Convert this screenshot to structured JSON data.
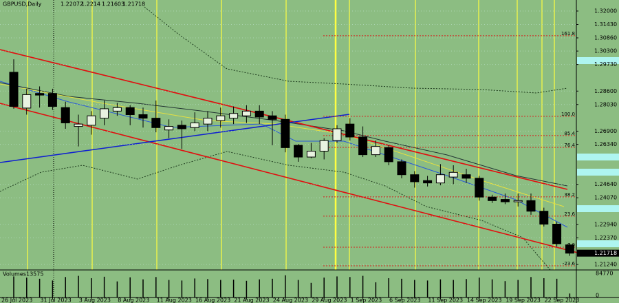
{
  "chart_data": {
    "type": "candlestick",
    "title": "GBPUSD,Daily",
    "categories": [
      "26 Jul 2023",
      null,
      null,
      "31 Jul 2023",
      null,
      null,
      "3 Aug 2023",
      null,
      null,
      "8 Aug 2023",
      null,
      null,
      "11 Aug 2023",
      null,
      null,
      "16 Aug 2023",
      null,
      null,
      "21 Aug 2023",
      null,
      null,
      "24 Aug 2023",
      null,
      null,
      "29 Aug 2023",
      null,
      null,
      "1 Sep 2023",
      null,
      null,
      "6 Sep 2023",
      null,
      null,
      "11 Sep 2023",
      null,
      null,
      "14 Sep 2023",
      null,
      null,
      "19 Sep 2023",
      null,
      null,
      "22 Sep 2023",
      null
    ],
    "open": [
      1.294,
      1.2788,
      1.285,
      1.285,
      1.279,
      1.271,
      1.2715,
      1.2745,
      1.2775,
      1.279,
      1.276,
      1.2745,
      1.2695,
      1.2715,
      1.2705,
      1.272,
      1.2735,
      1.2745,
      1.2755,
      1.2775,
      1.2755,
      1.274,
      1.263,
      1.258,
      1.2605,
      1.265,
      1.272,
      1.2665,
      1.259,
      1.262,
      1.256,
      1.2505,
      1.248,
      1.247,
      1.2495,
      1.2505,
      1.249,
      1.241,
      1.24,
      1.239,
      1.2395,
      1.235,
      1.2295,
      1.22072
    ],
    "high": [
      1.2995,
      1.287,
      1.288,
      1.287,
      1.2815,
      1.276,
      1.2775,
      1.282,
      1.281,
      1.28,
      1.279,
      1.282,
      1.274,
      1.2735,
      1.277,
      1.2775,
      1.279,
      1.2795,
      1.28,
      1.28,
      1.2775,
      1.276,
      1.2635,
      1.264,
      1.266,
      1.2715,
      1.2745,
      1.271,
      1.265,
      1.263,
      1.257,
      1.252,
      1.25,
      1.255,
      1.2545,
      1.253,
      1.25,
      1.242,
      1.2425,
      1.2425,
      1.2425,
      1.2365,
      1.2305,
      1.2214
    ],
    "low": [
      1.2785,
      1.276,
      1.279,
      1.278,
      1.27,
      1.2625,
      1.2675,
      1.2715,
      1.2755,
      1.2715,
      1.2705,
      1.2685,
      1.266,
      1.2615,
      1.269,
      1.269,
      1.2705,
      1.272,
      1.2725,
      1.272,
      1.263,
      1.26,
      1.256,
      1.2575,
      1.257,
      1.264,
      1.265,
      1.258,
      1.258,
      1.2545,
      1.249,
      1.245,
      1.2455,
      1.246,
      1.2465,
      1.247,
      1.2395,
      1.2385,
      1.238,
      1.237,
      1.2335,
      1.2285,
      1.22,
      1.21603
    ],
    "close": [
      1.2795,
      1.2845,
      1.2843,
      1.2795,
      1.2725,
      1.272,
      1.2755,
      1.2785,
      1.279,
      1.276,
      1.2745,
      1.2705,
      1.271,
      1.27,
      1.2725,
      1.2745,
      1.2755,
      1.2765,
      1.2775,
      1.275,
      1.274,
      1.262,
      1.258,
      1.2605,
      1.265,
      1.27,
      1.2665,
      1.259,
      1.2625,
      1.256,
      1.2505,
      1.2475,
      1.247,
      1.2505,
      1.2515,
      1.249,
      1.241,
      1.2395,
      1.239,
      1.2395,
      1.235,
      1.2295,
      1.2212,
      1.21718
    ],
    "volume": [
      72000,
      68000,
      64000,
      58000,
      70000,
      74000,
      66000,
      71000,
      55000,
      69000,
      62000,
      70000,
      60000,
      58000,
      65000,
      63000,
      60000,
      61000,
      57000,
      62000,
      64000,
      76000,
      60000,
      50000,
      68000,
      72000,
      70000,
      74000,
      52000,
      66000,
      64000,
      60000,
      58000,
      62000,
      60000,
      63000,
      68000,
      62000,
      56000,
      60000,
      70000,
      66000,
      64000,
      13575
    ],
    "volume_label": "Volumes",
    "volume_ylim": [
      0,
      84770
    ],
    "volume_ticks": [
      0,
      84770
    ],
    "ylim": [
      1.21006,
      1.32468
    ],
    "yticks": [
      {
        "value": 1.32,
        "label": "1.32000"
      },
      {
        "value": 1.3143,
        "label": "1.31430"
      },
      {
        "value": 1.3086,
        "label": "1.30860"
      },
      {
        "value": 1.303,
        "label": "1.30300"
      },
      {
        "value": 1.2973,
        "label": "1.29730"
      },
      {
        "value": 1.286,
        "label": "1.28600"
      },
      {
        "value": 1.2803,
        "label": "1.28030"
      },
      {
        "value": 1.269,
        "label": "1.26900"
      },
      {
        "value": 1.2634,
        "label": "1.26340"
      },
      {
        "value": 1.2464,
        "label": "1.24640"
      },
      {
        "value": 1.2407,
        "label": "1.24070"
      },
      {
        "value": 1.2294,
        "label": "1.22940"
      },
      {
        "value": 1.2237,
        "label": "1.22370"
      },
      {
        "value": 1.2124,
        "label": "1.21240"
      }
    ],
    "fib_levels": [
      {
        "label": "161.8",
        "value": 1.3095
      },
      {
        "label": "100.0",
        "value": 1.2753
      },
      {
        "label": "85.4",
        "value": 1.2671
      },
      {
        "label": "76.4",
        "value": 1.2621
      },
      {
        "label": "38.2",
        "value": 1.2411
      },
      {
        "label": "23.6",
        "value": 1.2329
      },
      {
        "label": "0.0",
        "value": 1.2197
      },
      {
        "label": "-23.6",
        "value": 1.2118
      }
    ],
    "up_color": "#e8f2e0",
    "down_color": "#000000",
    "fib_color": "#d81e1e",
    "grid": true
  }
}
